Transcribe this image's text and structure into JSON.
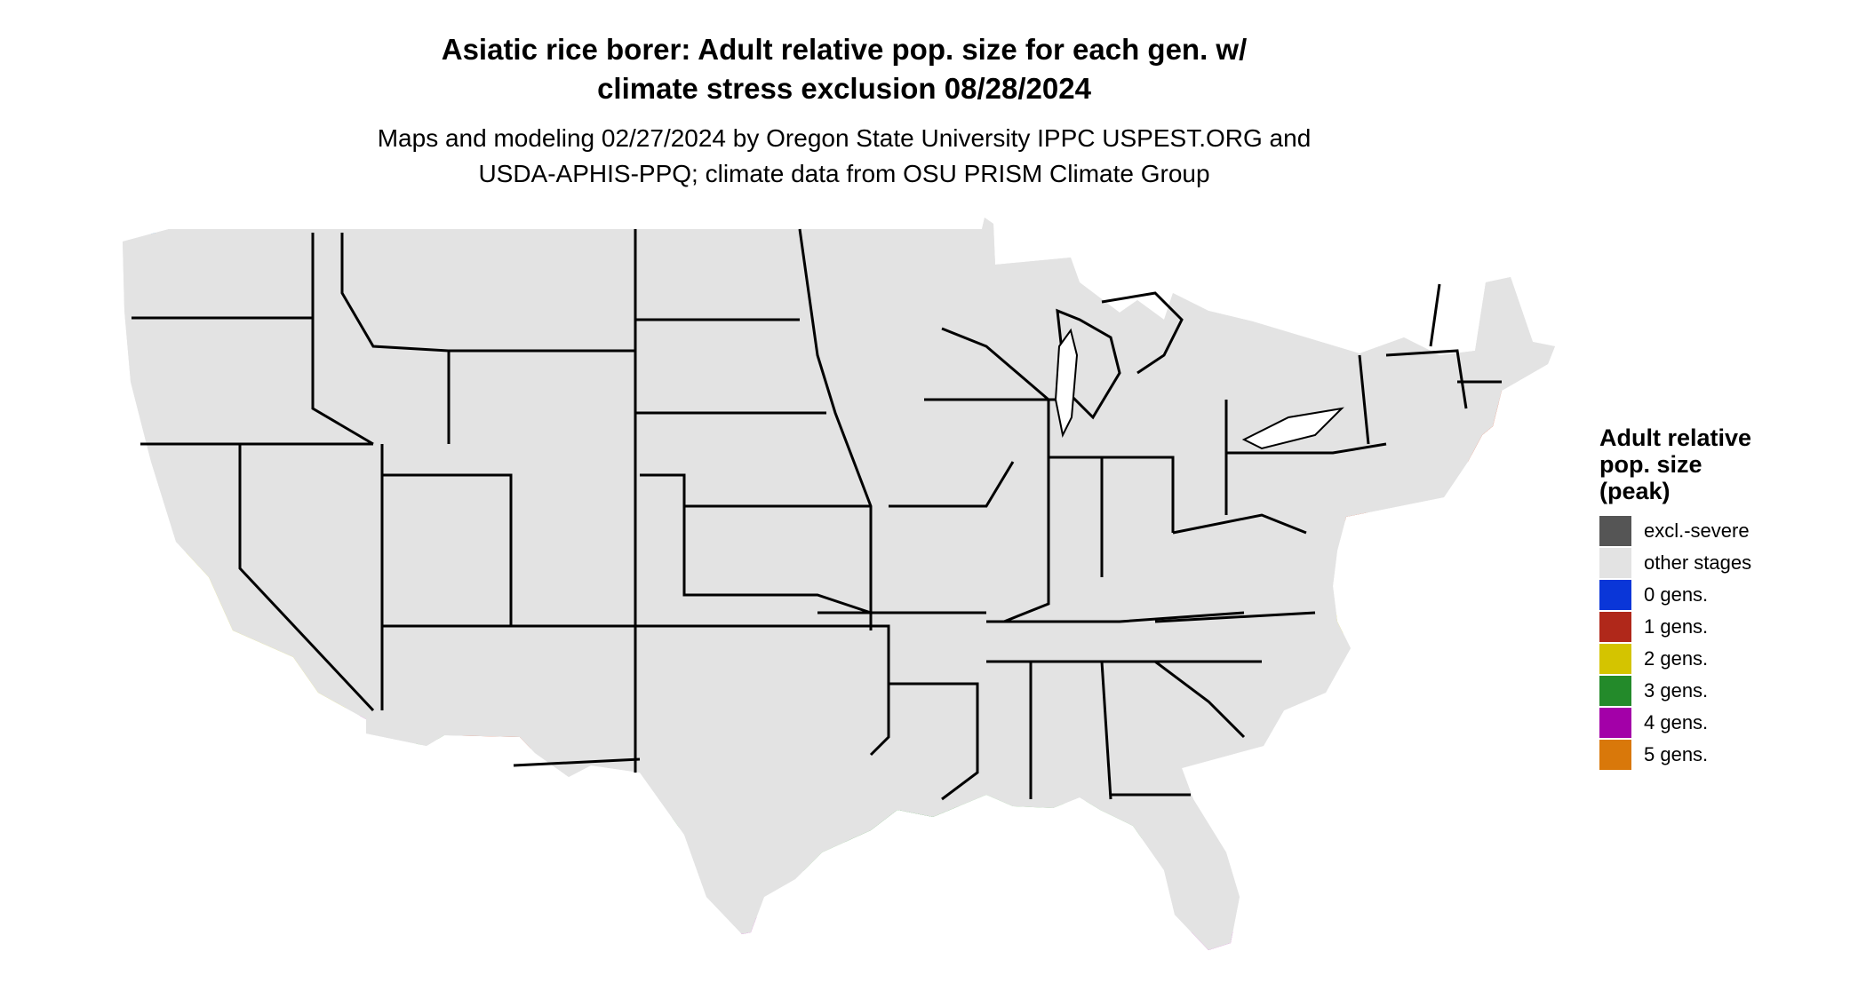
{
  "title_line1": "Asiatic rice borer: Adult relative pop. size for each gen. w/",
  "title_line2": "climate stress exclusion 08/28/2024",
  "subtitle_line1": "Maps and modeling 02/27/2024 by Oregon State University IPPC USPEST.ORG and",
  "subtitle_line2": "USDA-APHIS-PPQ; climate data from OSU PRISM Climate Group",
  "legend": {
    "title_line1": "Adult relative",
    "title_line2": "pop. size",
    "title_line3": "(peak)",
    "items": [
      {
        "label": "excl.-severe",
        "color": "#555555"
      },
      {
        "label": "other stages",
        "color": "#e3e3e3"
      },
      {
        "label": "0 gens.",
        "color": "#0a36d8"
      },
      {
        "label": "1 gens.",
        "color": "#b0281a"
      },
      {
        "label": "2 gens.",
        "color": "#d4c400"
      },
      {
        "label": "3 gens.",
        "color": "#238a2a"
      },
      {
        "label": "4 gens.",
        "color": "#a300a8"
      },
      {
        "label": "5 gens.",
        "color": "#d9780a"
      }
    ]
  },
  "map_colors": {
    "base": "#e3e3e3",
    "one_gen": "#f03c0e",
    "one_gen_dark": "#c8320c",
    "two_gen": "#f3ef00",
    "three_gen": "#6fd66a",
    "three_gen_dark": "#3e9e46",
    "four_gen": "#e000d8",
    "cold": "#1e90f0",
    "border": "#000000"
  }
}
